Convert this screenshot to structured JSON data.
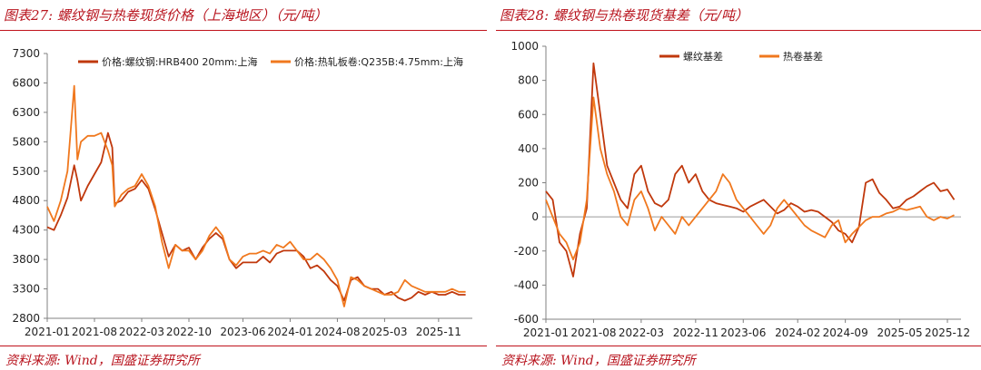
{
  "left": {
    "title": "图表27:  螺纹钢与热卷现货价格（上海地区）（元/吨）",
    "source": "资料来源:  Wind，国盛证券研究所"
  },
  "right": {
    "title": "图表28:  螺纹钢与热卷现货基差（元/吨）",
    "source": "资料来源:  Wind，国盛证券研究所"
  },
  "colors": {
    "series_dark": "#c0380c",
    "series_light": "#f0781e",
    "title_red": "#b8141e",
    "axis": "#808080"
  },
  "chart_data": [
    {
      "type": "line",
      "title": "",
      "xlabel": "",
      "ylabel": "",
      "ylim": [
        2800,
        7300
      ],
      "yticks": [
        2800,
        3300,
        3800,
        4300,
        4800,
        5300,
        5800,
        6300,
        6800,
        7300
      ],
      "xlim": [
        "2021-01",
        "2026-04"
      ],
      "xticks": [
        "2021-01",
        "2021-08",
        "2022-03",
        "2022-10",
        "2023-06",
        "2024-01",
        "2024-08",
        "2025-03",
        "2025-11"
      ],
      "grid": false,
      "legend": "top",
      "series": [
        {
          "name": "价格:螺纹钢:HRB400 20mm:上海",
          "color": "#c0380c",
          "x": [
            "2021-01",
            "2021-02",
            "2021-03",
            "2021-04",
            "2021-05",
            "2021-05-15",
            "2021-06",
            "2021-07",
            "2021-08",
            "2021-09",
            "2021-10",
            "2021-10-20",
            "2021-11",
            "2021-12",
            "2022-01",
            "2022-02",
            "2022-03",
            "2022-04",
            "2022-05",
            "2022-06",
            "2022-07",
            "2022-08",
            "2022-09",
            "2022-10",
            "2022-11",
            "2022-12",
            "2023-01",
            "2023-02",
            "2023-03",
            "2023-04",
            "2023-05",
            "2023-06",
            "2023-07",
            "2023-08",
            "2023-09",
            "2023-10",
            "2023-11",
            "2023-12",
            "2024-01",
            "2024-02",
            "2024-03",
            "2024-04",
            "2024-05",
            "2024-06",
            "2024-07",
            "2024-08",
            "2024-09",
            "2024-10",
            "2024-11",
            "2024-12",
            "2025-01",
            "2025-02",
            "2025-03",
            "2025-04",
            "2025-05",
            "2025-06",
            "2025-07",
            "2025-08",
            "2025-09",
            "2025-10",
            "2025-11",
            "2025-12",
            "2026-01",
            "2026-02",
            "2026-03"
          ],
          "y": [
            4350,
            4300,
            4550,
            4850,
            5400,
            5150,
            4800,
            5050,
            5250,
            5450,
            5950,
            5700,
            4750,
            4800,
            4950,
            5000,
            5150,
            5000,
            4650,
            4250,
            3850,
            4050,
            3950,
            4000,
            3800,
            4000,
            4150,
            4250,
            4150,
            3800,
            3650,
            3750,
            3750,
            3750,
            3850,
            3750,
            3900,
            3950,
            3950,
            3950,
            3850,
            3650,
            3700,
            3600,
            3450,
            3350,
            3100,
            3450,
            3500,
            3350,
            3300,
            3300,
            3200,
            3250,
            3150,
            3100,
            3150,
            3250,
            3200,
            3250,
            3200,
            3200,
            3250,
            3200,
            3200
          ]
        },
        {
          "name": "价格:热轧板卷:Q235B:4.75mm:上海",
          "color": "#f0781e",
          "x": [
            "2021-01",
            "2021-02",
            "2021-03",
            "2021-04",
            "2021-05",
            "2021-05-15",
            "2021-06",
            "2021-07",
            "2021-08",
            "2021-09",
            "2021-10",
            "2021-10-20",
            "2021-11",
            "2021-12",
            "2022-01",
            "2022-02",
            "2022-03",
            "2022-04",
            "2022-05",
            "2022-06",
            "2022-07",
            "2022-08",
            "2022-09",
            "2022-10",
            "2022-11",
            "2022-12",
            "2023-01",
            "2023-02",
            "2023-03",
            "2023-04",
            "2023-05",
            "2023-06",
            "2023-07",
            "2023-08",
            "2023-09",
            "2023-10",
            "2023-11",
            "2023-12",
            "2024-01",
            "2024-02",
            "2024-03",
            "2024-04",
            "2024-05",
            "2024-06",
            "2024-07",
            "2024-08",
            "2024-09",
            "2024-10",
            "2024-11",
            "2024-12",
            "2025-01",
            "2025-02",
            "2025-03",
            "2025-04",
            "2025-05",
            "2025-06",
            "2025-07",
            "2025-08",
            "2025-09",
            "2025-10",
            "2025-11",
            "2025-12",
            "2026-01",
            "2026-02",
            "2026-03"
          ],
          "y": [
            4700,
            4450,
            4800,
            5300,
            6750,
            5500,
            5800,
            5900,
            5900,
            5950,
            5650,
            5400,
            4700,
            4900,
            5000,
            5050,
            5250,
            5050,
            4700,
            4100,
            3650,
            4050,
            3950,
            3950,
            3800,
            3950,
            4200,
            4350,
            4200,
            3800,
            3700,
            3850,
            3900,
            3900,
            3950,
            3900,
            4050,
            4000,
            4100,
            3950,
            3800,
            3800,
            3900,
            3800,
            3650,
            3450,
            3000,
            3500,
            3450,
            3350,
            3300,
            3250,
            3200,
            3200,
            3250,
            3450,
            3350,
            3300,
            3250,
            3250,
            3250,
            3250,
            3300,
            3250,
            3250
          ]
        }
      ]
    },
    {
      "type": "line",
      "title": "",
      "xlabel": "",
      "ylabel": "",
      "ylim": [
        -600,
        1000
      ],
      "yticks": [
        -600,
        -400,
        -200,
        0,
        200,
        400,
        600,
        800,
        1000
      ],
      "xlim": [
        "2021-01",
        "2026-02"
      ],
      "xticks": [
        "2021-01",
        "2021-08",
        "2022-03",
        "2022-11",
        "2023-06",
        "2024-02",
        "2024-09",
        "2025-05",
        "2025-12"
      ],
      "grid": false,
      "zero_line": true,
      "legend": "top",
      "series": [
        {
          "name": "螺纹基差",
          "color": "#c0380c",
          "x": [
            "2021-01",
            "2021-02",
            "2021-03",
            "2021-04",
            "2021-05",
            "2021-06",
            "2021-07",
            "2021-08",
            "2021-09",
            "2021-10",
            "2021-11",
            "2021-12",
            "2022-01",
            "2022-02",
            "2022-03",
            "2022-04",
            "2022-05",
            "2022-06",
            "2022-07",
            "2022-08",
            "2022-09",
            "2022-10",
            "2022-11",
            "2022-12",
            "2023-01",
            "2023-02",
            "2023-03",
            "2023-04",
            "2023-05",
            "2023-06",
            "2023-07",
            "2023-08",
            "2023-09",
            "2023-10",
            "2023-11",
            "2023-12",
            "2024-01",
            "2024-02",
            "2024-03",
            "2024-04",
            "2024-05",
            "2024-06",
            "2024-07",
            "2024-08",
            "2024-09",
            "2024-10",
            "2024-11",
            "2024-12",
            "2025-01",
            "2025-02",
            "2025-03",
            "2025-04",
            "2025-05",
            "2025-06",
            "2025-07",
            "2025-08",
            "2025-09",
            "2025-10",
            "2025-11",
            "2025-12",
            "2026-01"
          ],
          "y": [
            150,
            100,
            -150,
            -200,
            -350,
            -100,
            50,
            900,
            600,
            300,
            200,
            100,
            50,
            250,
            300,
            150,
            80,
            60,
            100,
            250,
            300,
            200,
            250,
            150,
            100,
            80,
            70,
            60,
            50,
            30,
            60,
            80,
            100,
            60,
            20,
            40,
            80,
            60,
            30,
            40,
            30,
            0,
            -30,
            -80,
            -100,
            -150,
            -60,
            200,
            220,
            140,
            100,
            50,
            60,
            100,
            120,
            150,
            180,
            200,
            150,
            160,
            100
          ]
        },
        {
          "name": "热卷基差",
          "color": "#f0781e",
          "x": [
            "2021-01",
            "2021-02",
            "2021-03",
            "2021-04",
            "2021-05",
            "2021-06",
            "2021-07",
            "2021-08",
            "2021-09",
            "2021-10",
            "2021-11",
            "2021-12",
            "2022-01",
            "2022-02",
            "2022-03",
            "2022-04",
            "2022-05",
            "2022-06",
            "2022-07",
            "2022-08",
            "2022-09",
            "2022-10",
            "2022-11",
            "2022-12",
            "2023-01",
            "2023-02",
            "2023-03",
            "2023-04",
            "2023-05",
            "2023-06",
            "2023-07",
            "2023-08",
            "2023-09",
            "2023-10",
            "2023-11",
            "2023-12",
            "2024-01",
            "2024-02",
            "2024-03",
            "2024-04",
            "2024-05",
            "2024-06",
            "2024-07",
            "2024-08",
            "2024-09",
            "2024-10",
            "2024-11",
            "2024-12",
            "2025-01",
            "2025-02",
            "2025-03",
            "2025-04",
            "2025-05",
            "2025-06",
            "2025-07",
            "2025-08",
            "2025-09",
            "2025-10",
            "2025-11",
            "2025-12",
            "2026-01"
          ],
          "y": [
            100,
            0,
            -100,
            -150,
            -250,
            -150,
            100,
            700,
            400,
            250,
            150,
            0,
            -50,
            100,
            150,
            50,
            -80,
            0,
            -50,
            -100,
            0,
            -50,
            0,
            50,
            100,
            150,
            250,
            200,
            100,
            50,
            0,
            -50,
            -100,
            -50,
            50,
            100,
            50,
            0,
            -50,
            -80,
            -100,
            -120,
            -50,
            -20,
            -150,
            -100,
            -60,
            -20,
            0,
            0,
            20,
            30,
            50,
            40,
            50,
            60,
            0,
            -20,
            0,
            -10,
            10
          ]
        }
      ]
    }
  ]
}
